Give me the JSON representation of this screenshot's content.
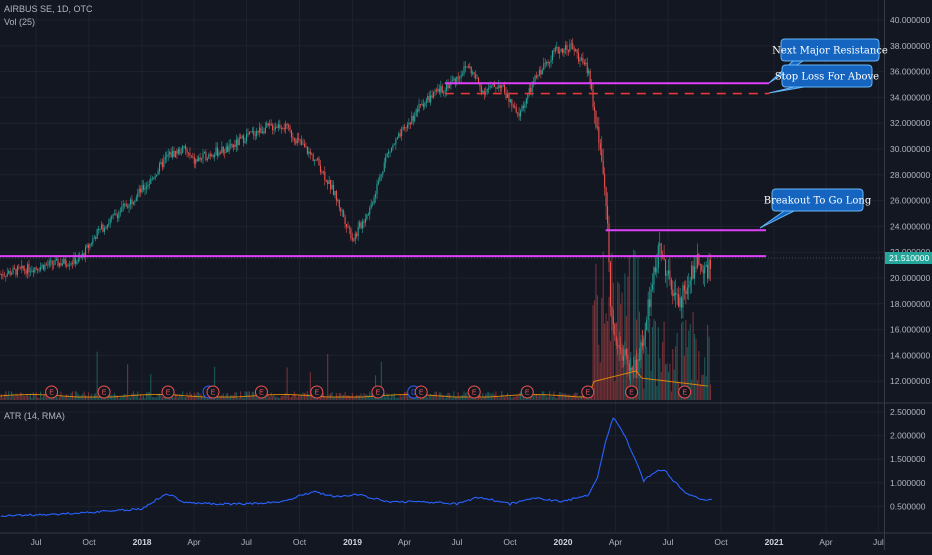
{
  "header": {
    "symbol_line": "AIRBUS SE, 1D, OTC",
    "volume_line": "Vol (25)",
    "atr_line": "ATR (14, RMA)"
  },
  "colors": {
    "background": "#131722",
    "grid": "#1e222d",
    "up_candle": "#26a69a",
    "down_candle": "#ef5350",
    "resistance_line": "#e040fb",
    "stop_line": "#e53935",
    "atr_line": "#2962ff",
    "callout_fill": "#1565c0",
    "callout_border": "#64b5f6",
    "price_badge": "#26a69a"
  },
  "chart_data": [
    {
      "type": "candlestick",
      "title": "AIRBUS SE, 1D, OTC",
      "x_axis": {
        "type": "date",
        "tick_labels": [
          "Jul",
          "Oct",
          "2018",
          "Apr",
          "Jul",
          "Oct",
          "2019",
          "Apr",
          "Jul",
          "Oct",
          "2020",
          "Apr",
          "Jul",
          "Oct",
          "2021",
          "Apr",
          "Jul"
        ],
        "bold_ticks": [
          "2018",
          "2019",
          "2020",
          "2021"
        ]
      },
      "y_axis": {
        "tick_labels": [
          "40.000000",
          "38.000000",
          "36.000000",
          "34.000000",
          "32.000000",
          "30.000000",
          "28.000000",
          "26.000000",
          "24.000000",
          "22.000000",
          "20.000000",
          "18.000000",
          "16.000000",
          "14.000000",
          "12.000000"
        ],
        "ylim": [
          10.8,
          41.0
        ]
      },
      "last_price": "21.510000",
      "price_path": [
        [
          "2017-05-01",
          20.3
        ],
        [
          "2017-06-15",
          20.7
        ],
        [
          "2017-08-01",
          21.1
        ],
        [
          "2017-09-15",
          21.4
        ],
        [
          "2017-10-15",
          23.5
        ],
        [
          "2017-12-01",
          25.5
        ],
        [
          "2018-01-15",
          27.5
        ],
        [
          "2018-02-15",
          29.5
        ],
        [
          "2018-03-15",
          30.0
        ],
        [
          "2018-04-01",
          29.0
        ],
        [
          "2018-05-01",
          29.7
        ],
        [
          "2018-06-01",
          30.0
        ],
        [
          "2018-07-01",
          31.0
        ],
        [
          "2018-08-01",
          31.6
        ],
        [
          "2018-09-01",
          31.9
        ],
        [
          "2018-10-01",
          30.5
        ],
        [
          "2018-11-01",
          29.0
        ],
        [
          "2018-12-01",
          26.5
        ],
        [
          "2019-01-02",
          23.0
        ],
        [
          "2019-02-01",
          25.5
        ],
        [
          "2019-03-01",
          29.5
        ],
        [
          "2019-04-01",
          31.5
        ],
        [
          "2019-05-01",
          33.5
        ],
        [
          "2019-06-01",
          34.5
        ],
        [
          "2019-07-01",
          35.5
        ],
        [
          "2019-07-20",
          36.5
        ],
        [
          "2019-08-15",
          34.5
        ],
        [
          "2019-09-15",
          35.0
        ],
        [
          "2019-10-15",
          32.5
        ],
        [
          "2019-11-15",
          35.5
        ],
        [
          "2019-12-15",
          37.5
        ],
        [
          "2020-01-15",
          38.0
        ],
        [
          "2020-02-15",
          36.0
        ],
        [
          "2020-03-01",
          31.0
        ],
        [
          "2020-03-10",
          29.0
        ],
        [
          "2020-03-18",
          23.7
        ],
        [
          "2020-03-25",
          17.0
        ],
        [
          "2020-04-05",
          15.0
        ],
        [
          "2020-04-20",
          13.5
        ],
        [
          "2020-05-05",
          13.0
        ],
        [
          "2020-05-20",
          15.0
        ],
        [
          "2020-06-05",
          20.5
        ],
        [
          "2020-06-20",
          22.5
        ],
        [
          "2020-07-05",
          19.0
        ],
        [
          "2020-07-20",
          18.0
        ],
        [
          "2020-08-05",
          19.5
        ],
        [
          "2020-08-20",
          21.5
        ],
        [
          "2020-09-05",
          20.5
        ],
        [
          "2020-09-15",
          21.5
        ]
      ]
    },
    {
      "type": "bar",
      "title": "Vol (25)",
      "y_axis": {
        "tick_labels": []
      },
      "earnings_markers": [
        {
          "date": "2017-07-28",
          "label": "E",
          "color": "#ef5350"
        },
        {
          "date": "2017-10-27",
          "label": "E",
          "color": "#ef5350"
        },
        {
          "date": "2018-02-15",
          "label": "E",
          "color": "#ef5350"
        },
        {
          "date": "2018-04-27",
          "label": "D",
          "color": "#2962ff"
        },
        {
          "date": "2018-05-04",
          "label": "E",
          "color": "#ef5350"
        },
        {
          "date": "2018-07-27",
          "label": "E",
          "color": "#ef5350"
        },
        {
          "date": "2018-10-31",
          "label": "E",
          "color": "#ef5350"
        },
        {
          "date": "2019-02-14",
          "label": "E",
          "color": "#ef5350"
        },
        {
          "date": "2019-04-17",
          "label": "D",
          "color": "#2962ff"
        },
        {
          "date": "2019-04-30",
          "label": "E",
          "color": "#ef5350"
        },
        {
          "date": "2019-07-31",
          "label": "E",
          "color": "#ef5350"
        },
        {
          "date": "2019-10-31",
          "label": "E",
          "color": "#ef5350"
        },
        {
          "date": "2020-02-13",
          "label": "E",
          "color": "#ef5350"
        },
        {
          "date": "2020-04-29",
          "label": "E",
          "color": "#ef5350"
        },
        {
          "date": "2020-07-30",
          "label": "E",
          "color": "#ef5350"
        }
      ]
    },
    {
      "type": "line",
      "title": "ATR (14, RMA)",
      "y_axis": {
        "tick_labels": [
          "2.500000",
          "2.000000",
          "1.500000",
          "1.000000",
          "0.500000"
        ],
        "ylim": [
          0.2,
          2.6
        ]
      },
      "series": [
        {
          "values": [
            [
              "2017-05-01",
              0.3
            ],
            [
              "2017-07-01",
              0.32
            ],
            [
              "2017-09-01",
              0.35
            ],
            [
              "2017-11-01",
              0.4
            ],
            [
              "2018-01-01",
              0.45
            ],
            [
              "2018-02-12",
              0.78
            ],
            [
              "2018-03-15",
              0.6
            ],
            [
              "2018-05-01",
              0.55
            ],
            [
              "2018-07-01",
              0.55
            ],
            [
              "2018-09-01",
              0.6
            ],
            [
              "2018-10-25",
              0.82
            ],
            [
              "2018-12-01",
              0.7
            ],
            [
              "2019-01-10",
              0.75
            ],
            [
              "2019-03-01",
              0.6
            ],
            [
              "2019-05-01",
              0.6
            ],
            [
              "2019-07-01",
              0.55
            ],
            [
              "2019-08-10",
              0.7
            ],
            [
              "2019-10-01",
              0.55
            ],
            [
              "2019-11-15",
              0.68
            ],
            [
              "2020-01-01",
              0.6
            ],
            [
              "2020-02-15",
              0.75
            ],
            [
              "2020-03-01",
              1.1
            ],
            [
              "2020-03-15",
              1.9
            ],
            [
              "2020-03-28",
              2.38
            ],
            [
              "2020-04-15",
              2.05
            ],
            [
              "2020-05-01",
              1.6
            ],
            [
              "2020-05-20",
              1.05
            ],
            [
              "2020-06-10",
              1.25
            ],
            [
              "2020-06-25",
              1.28
            ],
            [
              "2020-07-10",
              1.05
            ],
            [
              "2020-08-01",
              0.8
            ],
            [
              "2020-08-25",
              0.65
            ],
            [
              "2020-09-15",
              0.65
            ]
          ]
        }
      ]
    }
  ],
  "annotations": {
    "resistance_1": {
      "price": 35.1,
      "start": "2019-06-10",
      "end": "2020-12-20"
    },
    "stop_line": {
      "price": 34.3,
      "start": "2019-06-10",
      "end": "2020-12-20"
    },
    "breakout_line": {
      "price": 23.7,
      "start": "2020-03-15",
      "end": "2020-12-20"
    },
    "support_line": {
      "price": 21.7,
      "start": "2017-05-01",
      "end": "2020-12-20"
    },
    "callouts": [
      {
        "text": "Next Major Resistance"
      },
      {
        "text": "Stop Loss For Above"
      },
      {
        "text": "Breakout To Go Long"
      }
    ]
  }
}
